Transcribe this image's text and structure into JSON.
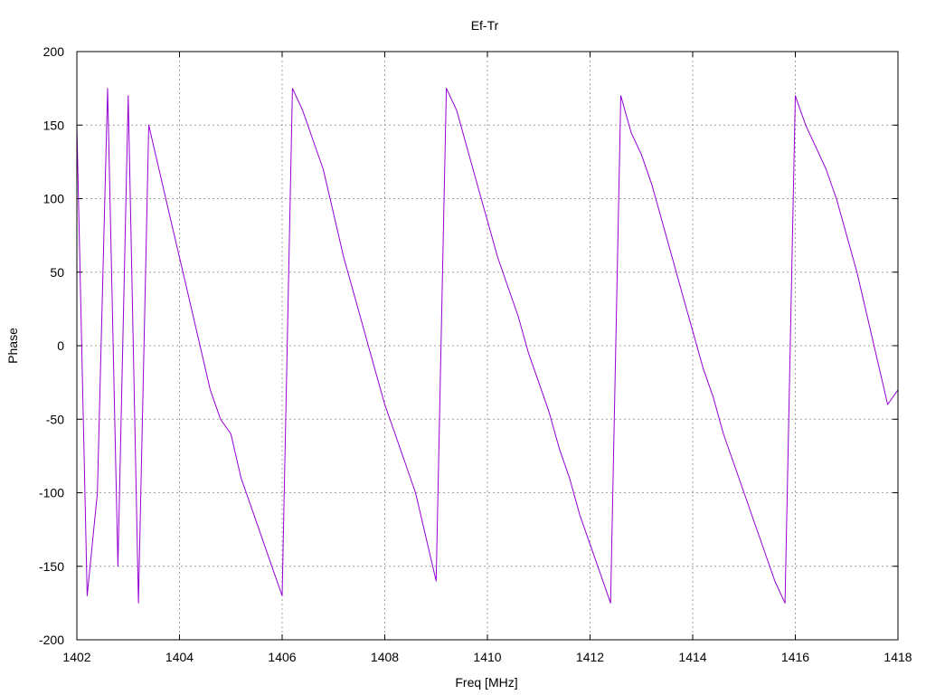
{
  "chart_data": {
    "type": "line",
    "title": "Ef-Tr",
    "xlabel": "Freq [MHz]",
    "ylabel": "Phase",
    "xlim": [
      1402,
      1418
    ],
    "ylim": [
      -200,
      200
    ],
    "x_ticks": [
      1402,
      1404,
      1406,
      1408,
      1410,
      1412,
      1414,
      1416,
      1418
    ],
    "y_ticks": [
      -200,
      -150,
      -100,
      -50,
      0,
      50,
      100,
      150,
      200
    ],
    "grid": true,
    "legend": "none",
    "series": [
      {
        "color": "#9400d3",
        "x": [
          1402.0,
          1402.2,
          1402.4,
          1402.6,
          1402.8,
          1403.0,
          1403.2,
          1403.4,
          1403.6,
          1403.8,
          1404.0,
          1404.2,
          1404.4,
          1404.6,
          1404.8,
          1405.0,
          1405.2,
          1405.4,
          1405.6,
          1405.8,
          1406.0,
          1406.2,
          1406.4,
          1406.6,
          1406.8,
          1407.0,
          1407.2,
          1407.4,
          1407.6,
          1407.8,
          1408.0,
          1408.2,
          1408.4,
          1408.6,
          1408.8,
          1409.0,
          1409.2,
          1409.4,
          1409.6,
          1409.8,
          1410.0,
          1410.2,
          1410.4,
          1410.6,
          1410.8,
          1411.0,
          1411.2,
          1411.4,
          1411.6,
          1411.8,
          1412.0,
          1412.2,
          1412.4,
          1412.6,
          1412.8,
          1413.0,
          1413.2,
          1413.4,
          1413.6,
          1413.8,
          1414.0,
          1414.2,
          1414.4,
          1414.6,
          1414.8,
          1415.0,
          1415.2,
          1415.4,
          1415.6,
          1415.8,
          1416.0,
          1416.2,
          1416.4,
          1416.6,
          1416.8,
          1417.0,
          1417.2,
          1417.4,
          1417.6,
          1417.8,
          1418.0
        ],
        "y": [
          150,
          -170,
          -100,
          175,
          -150,
          170,
          -175,
          150,
          120,
          90,
          60,
          30,
          0,
          -30,
          -50,
          -60,
          -90,
          -110,
          -130,
          -150,
          -170,
          175,
          160,
          140,
          120,
          90,
          60,
          35,
          10,
          -15,
          -40,
          -60,
          -80,
          -100,
          -130,
          -160,
          175,
          160,
          135,
          110,
          85,
          60,
          40,
          20,
          -5,
          -25,
          -45,
          -70,
          -90,
          -115,
          -135,
          -155,
          -175,
          170,
          145,
          130,
          110,
          85,
          60,
          35,
          10,
          -15,
          -35,
          -60,
          -80,
          -100,
          -120,
          -140,
          -160,
          -175,
          170,
          150,
          135,
          120,
          100,
          75,
          50,
          20,
          -10,
          -40,
          -30
        ]
      }
    ]
  }
}
